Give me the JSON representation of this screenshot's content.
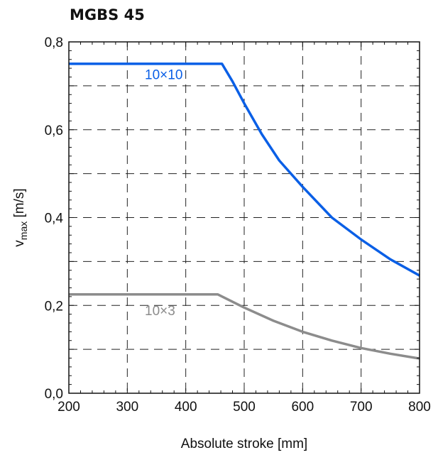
{
  "chart_data": {
    "type": "line",
    "title": "MGBS 45",
    "xlabel": "Absolute stroke [mm]",
    "ylabel": {
      "main": "v",
      "sub": "max",
      "unit": " [m/s]"
    },
    "xlim": [
      200,
      800
    ],
    "ylim": [
      0,
      0.8
    ],
    "x_ticks": [
      200,
      300,
      400,
      500,
      600,
      700,
      800
    ],
    "x_tick_labels": [
      "200",
      "300",
      "400",
      "500",
      "600",
      "700",
      "800"
    ],
    "y_ticks": [
      0,
      0.2,
      0.4,
      0.6,
      0.8
    ],
    "y_tick_labels": [
      "0,0",
      "0,2",
      "0,4",
      "0,6",
      "0,8"
    ],
    "grid": {
      "style": "dashed",
      "x_step": 100,
      "y_step": 0.1
    },
    "series": [
      {
        "name": "10×10",
        "color": "#0a5fe6",
        "x": [
          200,
          462,
          480,
          500,
          530,
          560,
          600,
          650,
          700,
          750,
          800
        ],
        "y": [
          0.75,
          0.75,
          0.71,
          0.66,
          0.59,
          0.53,
          0.47,
          0.4,
          0.35,
          0.305,
          0.268
        ]
      },
      {
        "name": "10×3",
        "color": "#8c8c8c",
        "x": [
          200,
          455,
          500,
          550,
          600,
          650,
          700,
          750,
          800
        ],
        "y": [
          0.225,
          0.225,
          0.195,
          0.165,
          0.14,
          0.12,
          0.103,
          0.09,
          0.079
        ]
      }
    ],
    "series_labels": [
      {
        "text": "10×10",
        "x": 330,
        "y": 0.715,
        "color": "#0a5fe6"
      },
      {
        "text": "10×3",
        "x": 330,
        "y": 0.178,
        "color": "#8c8c8c"
      }
    ]
  }
}
